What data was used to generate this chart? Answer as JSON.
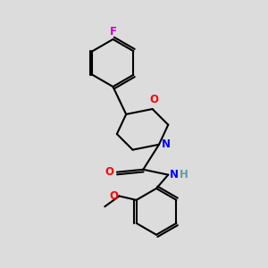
{
  "background_color": "#e8e8e8",
  "bond_color": "#000000",
  "line_width": 1.5,
  "atom_colors": {
    "F": "#cc00cc",
    "O": "#ff0000",
    "N": "#0000ff",
    "H": "#5f9ea0",
    "C": "#000000"
  },
  "font_size": 8.5,
  "fig_bg": "#dcdcdc"
}
